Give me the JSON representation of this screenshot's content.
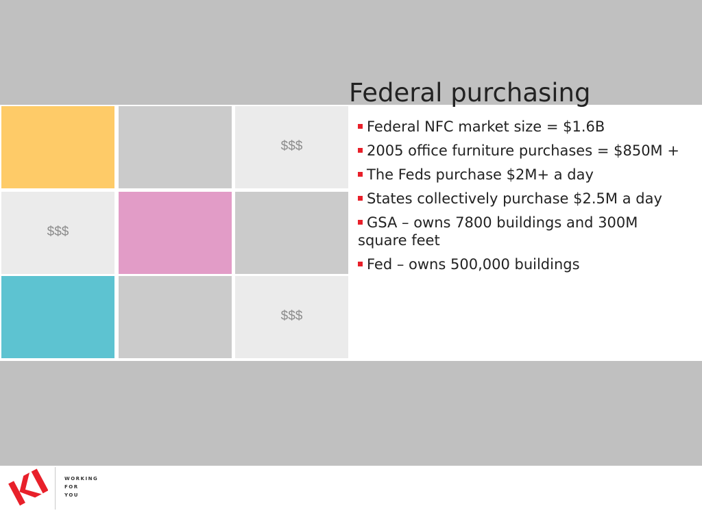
{
  "slide": {
    "title": "Federal purchasing",
    "grid": [
      {
        "label": "",
        "color": "#fecb68"
      },
      {
        "label": "",
        "color": "#cbcbcb"
      },
      {
        "label": "$$$",
        "color": "#ebebeb"
      },
      {
        "label": "$$$",
        "color": "#ebebeb"
      },
      {
        "label": "",
        "color": "#e29cc7"
      },
      {
        "label": "",
        "color": "#cbcbcb"
      },
      {
        "label": "",
        "color": "#5dc3d1"
      },
      {
        "label": "",
        "color": "#cbcbcb"
      },
      {
        "label": "$$$",
        "color": "#ebebeb"
      }
    ],
    "bullets": [
      "Federal NFC market size = $1.6B",
      "2005 office furniture purchases = $850M +",
      "The Feds purchase $2M+ a day",
      "States collectively purchase $2.5M a day",
      "GSA – owns 7800 buildings and 300M square feet",
      "Fed – owns 500,000 buildings"
    ],
    "bullet_color": "#e8202a"
  },
  "footer": {
    "logo_text": "KI",
    "logo_color": "#e8202a",
    "tagline": [
      "WORKING",
      "FOR",
      "YOU"
    ]
  }
}
